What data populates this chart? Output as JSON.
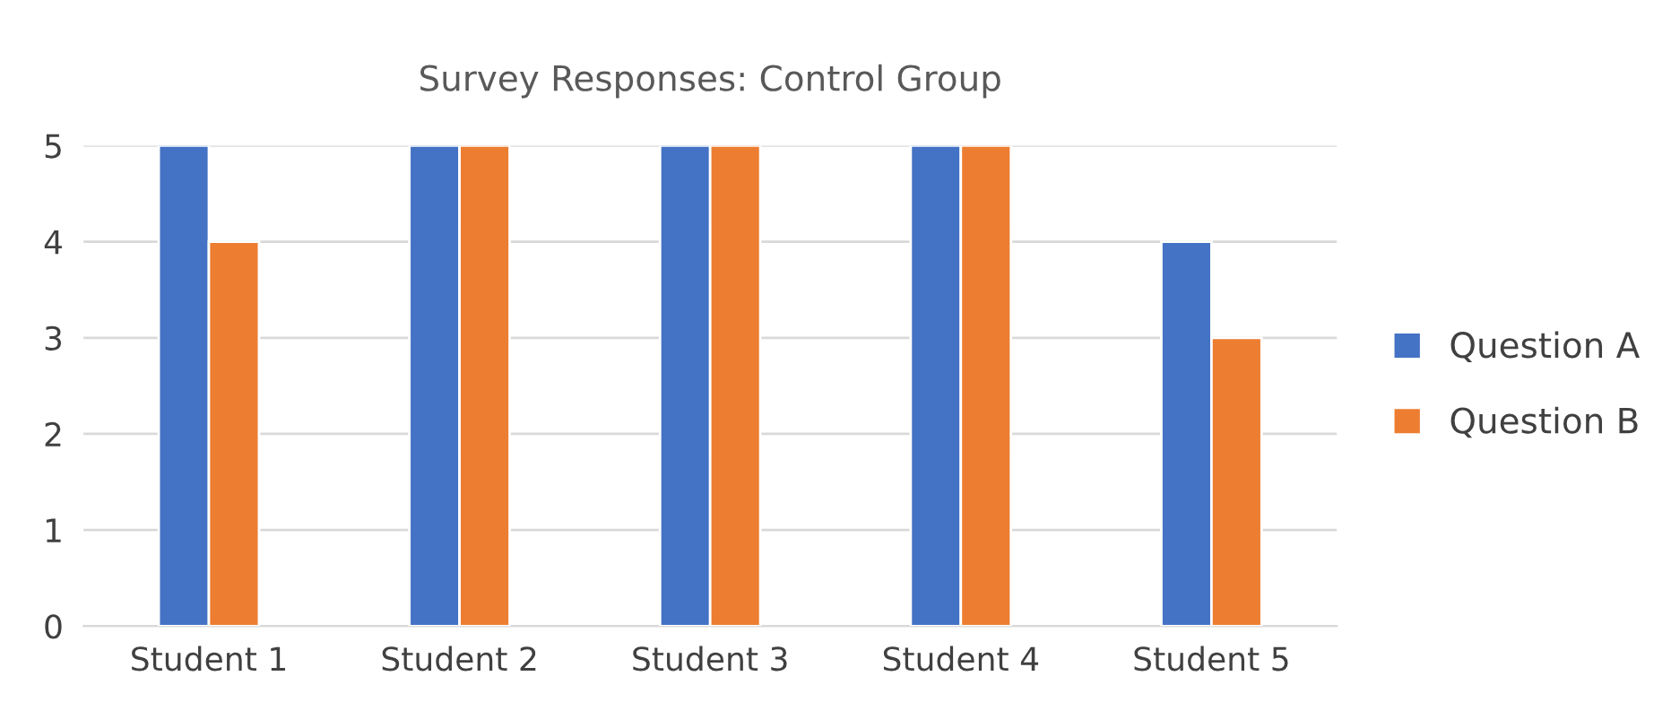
{
  "chart_data": {
    "type": "bar",
    "title": "Survey Responses: Control Group",
    "categories": [
      "Student 1",
      "Student 2",
      "Student 3",
      "Student 4",
      "Student 5"
    ],
    "series": [
      {
        "name": "Question A",
        "color": "#4472c4",
        "values": [
          5,
          5,
          5,
          5,
          4
        ]
      },
      {
        "name": "Question B",
        "color": "#ed7d31",
        "values": [
          4,
          5,
          5,
          5,
          3
        ]
      }
    ],
    "ylim": [
      0,
      5
    ],
    "yticks": [
      0,
      1,
      2,
      3,
      4,
      5
    ],
    "grid": "y",
    "legend": "right"
  }
}
